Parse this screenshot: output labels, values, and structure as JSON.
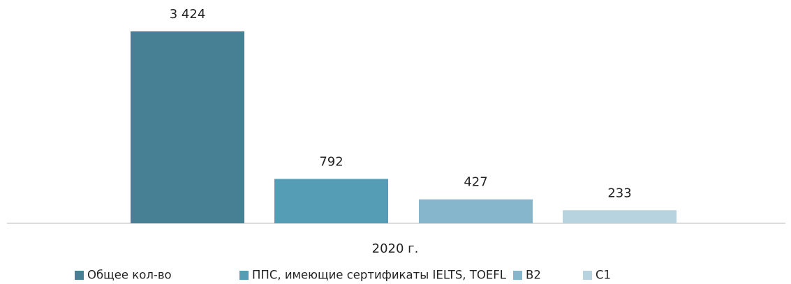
{
  "chart_data": {
    "type": "bar",
    "categories": [
      "2020 г."
    ],
    "series": [
      {
        "name": "Общее кол-во",
        "color": "#477f95",
        "values": [
          3424
        ],
        "value_labels": [
          "3 424"
        ]
      },
      {
        "name": "ППС, имеющие сертификаты IELTS, TOEFL",
        "color": "#559db5",
        "values": [
          792
        ]
      },
      {
        "name": "B2",
        "color": "#86b6cb",
        "values": [
          427
        ]
      },
      {
        "name": "C1",
        "color": "#b7d3df",
        "values": [
          233
        ]
      }
    ],
    "legend": "bottom"
  }
}
